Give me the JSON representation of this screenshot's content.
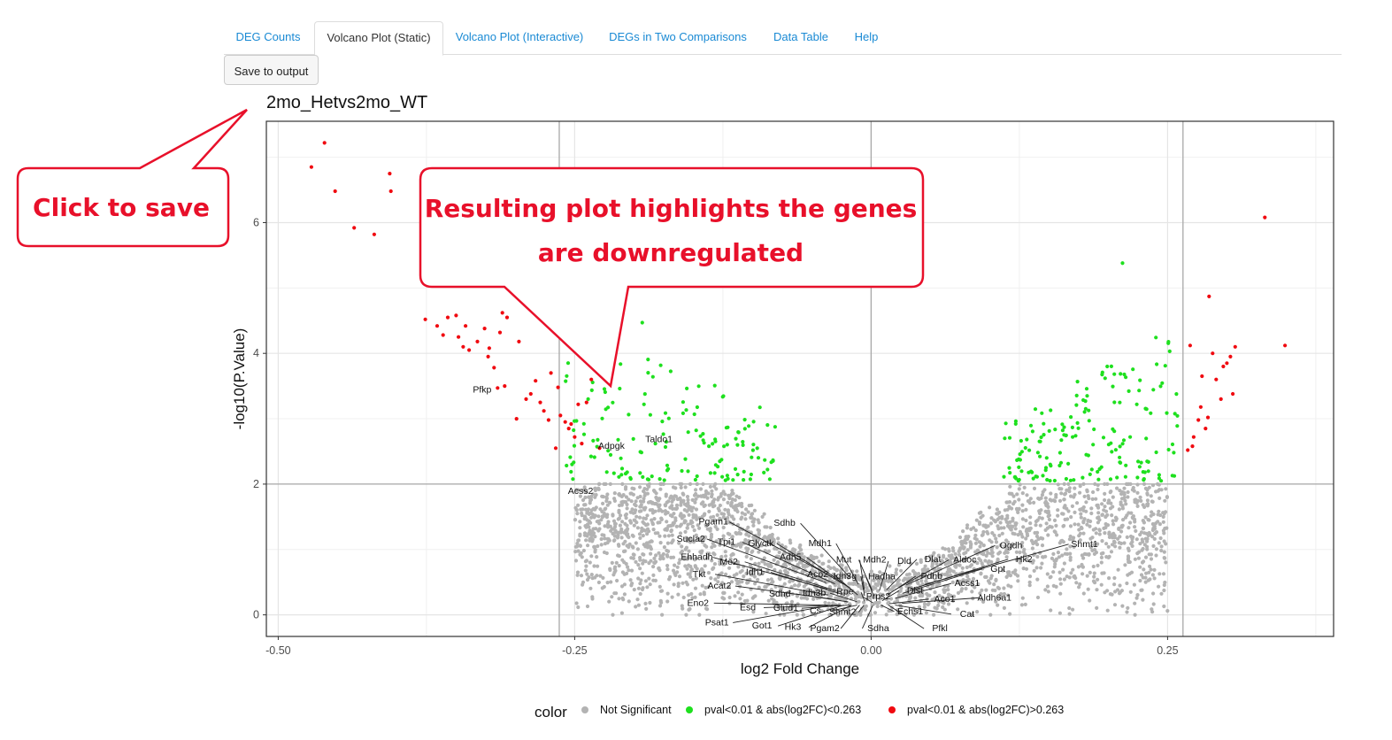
{
  "tabs": [
    {
      "label": "DEG Counts",
      "active": false
    },
    {
      "label": "Volcano Plot (Static)",
      "active": true
    },
    {
      "label": "Volcano Plot (Interactive)",
      "active": false
    },
    {
      "label": "DEGs in Two Comparisons",
      "active": false
    },
    {
      "label": "Data Table",
      "active": false
    },
    {
      "label": "Help",
      "active": false
    }
  ],
  "save_button_label": "Save to output",
  "callouts": {
    "save": "Click to save",
    "plot_line1": "Resulting plot highlights the genes",
    "plot_line2": "are downregulated"
  },
  "colors": {
    "not_significant": "#b3b3b3",
    "small_fc": "#1ee01e",
    "large_fc": "#f00a10",
    "callout_red": "#e8102a",
    "tab_link": "#1a8ad4"
  },
  "chart_data": {
    "type": "scatter",
    "title": "2mo_Hetvs2mo_WT",
    "xlabel": "log2 Fold Change",
    "ylabel": "-log10(P.Value)",
    "xlim": [
      -0.51,
      0.39
    ],
    "ylim": [
      -0.33,
      7.55
    ],
    "x_ticks": [
      -0.5,
      -0.25,
      0.0,
      0.25
    ],
    "x_tick_labels": [
      "-0.50",
      "-0.25",
      "0.00",
      "0.25"
    ],
    "y_ticks": [
      0,
      2,
      4,
      6
    ],
    "y_tick_labels": [
      "0",
      "2",
      "4",
      "6"
    ],
    "vlines": [
      -0.263,
      0.0,
      0.263
    ],
    "hline": 2,
    "grid": true,
    "legend": {
      "title": "color",
      "position": "bottom",
      "entries": [
        "Not Significant",
        "pval<0.01 & abs(log2FC)<0.263",
        "pval<0.01 & abs(log2FC)>0.263"
      ]
    },
    "series": [
      {
        "name": "pval<0.01 & abs(log2FC)>0.263",
        "points": [
          [
            -0.472,
            6.85
          ],
          [
            -0.461,
            7.22
          ],
          [
            -0.452,
            6.48
          ],
          [
            -0.436,
            5.92
          ],
          [
            -0.419,
            5.82
          ],
          [
            -0.406,
            6.75
          ],
          [
            -0.405,
            6.48
          ],
          [
            -0.376,
            4.52
          ],
          [
            -0.366,
            4.42
          ],
          [
            -0.361,
            4.28
          ],
          [
            -0.357,
            4.55
          ],
          [
            -0.35,
            4.58
          ],
          [
            -0.348,
            4.25
          ],
          [
            -0.342,
            4.42
          ],
          [
            -0.344,
            4.1
          ],
          [
            -0.339,
            4.05
          ],
          [
            -0.332,
            4.18
          ],
          [
            -0.326,
            4.38
          ],
          [
            -0.323,
            3.95
          ],
          [
            -0.318,
            3.78
          ],
          [
            -0.313,
            4.32
          ],
          [
            -0.307,
            4.55
          ],
          [
            -0.311,
            4.62
          ],
          [
            -0.322,
            4.08
          ],
          [
            -0.315,
            3.47
          ],
          [
            -0.309,
            3.5
          ],
          [
            -0.297,
            4.18
          ],
          [
            -0.287,
            3.38
          ],
          [
            -0.283,
            3.58
          ],
          [
            -0.279,
            3.25
          ],
          [
            -0.276,
            3.12
          ],
          [
            -0.27,
            3.7
          ],
          [
            -0.264,
            3.48
          ],
          [
            -0.262,
            3.05
          ],
          [
            -0.258,
            2.95
          ],
          [
            -0.255,
            2.85
          ],
          [
            -0.253,
            2.92
          ],
          [
            -0.25,
            2.72
          ],
          [
            -0.247,
            3.22
          ],
          [
            -0.244,
            2.62
          ],
          [
            -0.24,
            3.25
          ],
          [
            -0.236,
            3.6
          ],
          [
            -0.231,
            3.82
          ],
          [
            -0.229,
            2.55
          ],
          [
            -0.266,
            2.55
          ],
          [
            -0.272,
            2.98
          ],
          [
            -0.291,
            3.3
          ],
          [
            -0.299,
            3.0
          ],
          [
            0.332,
            6.08
          ],
          [
            0.349,
            4.12
          ],
          [
            0.307,
            4.1
          ],
          [
            0.303,
            3.95
          ],
          [
            0.3,
            3.85
          ],
          [
            0.297,
            3.8
          ],
          [
            0.288,
            4.0
          ],
          [
            0.285,
            4.87
          ],
          [
            0.279,
            3.65
          ],
          [
            0.284,
            3.02
          ],
          [
            0.276,
            2.98
          ],
          [
            0.272,
            2.72
          ],
          [
            0.291,
            3.6
          ],
          [
            0.269,
            4.12
          ],
          [
            0.271,
            2.58
          ],
          [
            0.267,
            2.52
          ],
          [
            0.278,
            3.18
          ],
          [
            0.295,
            3.3
          ],
          [
            0.305,
            3.38
          ],
          [
            0.282,
            2.85
          ]
        ]
      },
      {
        "name": "pval<0.01 & abs(log2FC)<0.263",
        "cloud": true
      },
      {
        "name": "Not Significant",
        "cloud": true
      }
    ],
    "annotations": [
      {
        "label": "Pfkp",
        "x": -0.328,
        "y": 3.4
      },
      {
        "label": "Adpgk",
        "x": -0.219,
        "y": 2.54
      },
      {
        "label": "Taldo1",
        "x": -0.179,
        "y": 2.64
      },
      {
        "label": "Acss2",
        "x": -0.245,
        "y": 1.85
      },
      {
        "label": "Pgam1",
        "x": -0.133,
        "y": 1.38
      },
      {
        "label": "Sdhb",
        "x": -0.073,
        "y": 1.36
      },
      {
        "label": "Sucla2",
        "x": -0.152,
        "y": 1.12
      },
      {
        "label": "Tpi1",
        "x": -0.122,
        "y": 1.07
      },
      {
        "label": "Glyctk",
        "x": -0.093,
        "y": 1.05
      },
      {
        "label": "Mdh1",
        "x": -0.043,
        "y": 1.05
      },
      {
        "label": "Ehhadh",
        "x": -0.147,
        "y": 0.84
      },
      {
        "label": "Me2",
        "x": -0.12,
        "y": 0.77
      },
      {
        "label": "Adh5",
        "x": -0.068,
        "y": 0.84
      },
      {
        "label": "Mut",
        "x": -0.023,
        "y": 0.8
      },
      {
        "label": "Mdh2",
        "x": 0.003,
        "y": 0.8
      },
      {
        "label": "Dld",
        "x": 0.028,
        "y": 0.78
      },
      {
        "label": "Dlat",
        "x": 0.052,
        "y": 0.81
      },
      {
        "label": "Aldoc",
        "x": 0.079,
        "y": 0.8
      },
      {
        "label": "Ogdh",
        "x": 0.118,
        "y": 1.02
      },
      {
        "label": "Hk2",
        "x": 0.129,
        "y": 0.81
      },
      {
        "label": "Shmt1",
        "x": 0.18,
        "y": 1.04
      },
      {
        "label": "Idh1",
        "x": -0.098,
        "y": 0.61
      },
      {
        "label": "Aco2",
        "x": -0.045,
        "y": 0.58
      },
      {
        "label": "Idh3g",
        "x": -0.022,
        "y": 0.55
      },
      {
        "label": "Hadha",
        "x": 0.009,
        "y": 0.54
      },
      {
        "label": "Pdhb",
        "x": 0.051,
        "y": 0.55
      },
      {
        "label": "Gpt",
        "x": 0.107,
        "y": 0.66
      },
      {
        "label": "Tkt",
        "x": -0.145,
        "y": 0.58
      },
      {
        "label": "Acat2",
        "x": -0.128,
        "y": 0.4
      },
      {
        "label": "Sdhd",
        "x": -0.077,
        "y": 0.28
      },
      {
        "label": "Idh3b",
        "x": -0.048,
        "y": 0.29
      },
      {
        "label": "Rpe",
        "x": -0.022,
        "y": 0.31
      },
      {
        "label": "Prps2",
        "x": 0.006,
        "y": 0.24
      },
      {
        "label": "Dlst",
        "x": 0.037,
        "y": 0.33
      },
      {
        "label": "Acss1",
        "x": 0.081,
        "y": 0.44
      },
      {
        "label": "Aco1",
        "x": 0.062,
        "y": 0.2
      },
      {
        "label": "Aldh6a1",
        "x": 0.104,
        "y": 0.22
      },
      {
        "label": "Eno2",
        "x": -0.146,
        "y": 0.14
      },
      {
        "label": "Esd",
        "x": -0.104,
        "y": 0.07
      },
      {
        "label": "Glud1",
        "x": -0.072,
        "y": 0.06
      },
      {
        "label": "Cs",
        "x": -0.047,
        "y": 0.02
      },
      {
        "label": "Shmt2",
        "x": -0.024,
        "y": 0.0
      },
      {
        "label": "Echs1",
        "x": 0.033,
        "y": 0.01
      },
      {
        "label": "Cat",
        "x": 0.081,
        "y": -0.03
      },
      {
        "label": "Psat1",
        "x": -0.13,
        "y": -0.16
      },
      {
        "label": "Got1",
        "x": -0.092,
        "y": -0.21
      },
      {
        "label": "Hk3",
        "x": -0.066,
        "y": -0.23
      },
      {
        "label": "Pgam2",
        "x": -0.039,
        "y": -0.25
      },
      {
        "label": "Sdha",
        "x": 0.006,
        "y": -0.25
      },
      {
        "label": "Pfkl",
        "x": 0.058,
        "y": -0.25
      }
    ]
  }
}
